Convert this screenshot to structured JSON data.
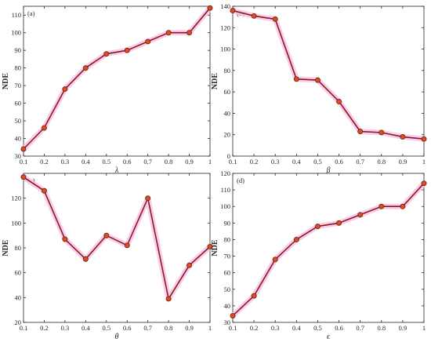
{
  "chart_data": [
    {
      "type": "line",
      "panel": "(a)",
      "x": [
        0.1,
        0.2,
        0.3,
        0.4,
        0.5,
        0.6,
        0.7,
        0.8,
        0.9,
        1
      ],
      "series": [
        {
          "values": [
            34,
            46,
            68,
            80,
            88,
            90,
            95,
            100,
            100,
            114
          ]
        }
      ],
      "xlabel": "λ",
      "ylabel": "NDE",
      "xlim": [
        0.1,
        1
      ],
      "ylim": [
        30,
        115
      ],
      "xticks": [
        "0.1",
        "0.2",
        "0.3",
        "0.4",
        "0.5",
        "0.6",
        "0.7",
        "0.8",
        "0.9",
        "1"
      ],
      "yticks": [
        30,
        40,
        50,
        60,
        70,
        80,
        90,
        100,
        110
      ],
      "grid": false,
      "colors": {
        "line": "#8b1a1a",
        "marker": "#e04a2a",
        "highlight": "#f9c3ea"
      }
    },
    {
      "type": "line",
      "panel": "(b)",
      "x": [
        0.1,
        0.2,
        0.3,
        0.4,
        0.5,
        0.6,
        0.7,
        0.8,
        0.9,
        1
      ],
      "series": [
        {
          "values": [
            136,
            131,
            128,
            72,
            71,
            51,
            23,
            22,
            18,
            16
          ]
        }
      ],
      "xlabel": "β",
      "ylabel": "NDE",
      "xlim": [
        0.1,
        1
      ],
      "ylim": [
        0,
        140
      ],
      "xticks": [
        "0.1",
        "0.2",
        "0.3",
        "0.4",
        "0.5",
        "0.6",
        "0.7",
        "0.8",
        "0.9",
        "1"
      ],
      "yticks": [
        0,
        20,
        40,
        60,
        80,
        100,
        120,
        140
      ],
      "grid": false,
      "colors": {
        "line": "#8b1a1a",
        "marker": "#e04a2a",
        "highlight": "#f9c3ea"
      }
    },
    {
      "type": "line",
      "panel": "(c)",
      "x": [
        0.1,
        0.2,
        0.3,
        0.4,
        0.5,
        0.6,
        0.7,
        0.8,
        0.9,
        1
      ],
      "series": [
        {
          "values": [
            137,
            126,
            87,
            71,
            90,
            82,
            120,
            39,
            66,
            81
          ]
        }
      ],
      "xlabel": "θ",
      "ylabel": "NDE",
      "xlim": [
        0.1,
        1
      ],
      "ylim": [
        20,
        140
      ],
      "xticks": [
        "0.1",
        "0.2",
        "0.3",
        "0.4",
        "0.5",
        "0.6",
        "0.7",
        "0.8",
        "0.9",
        "1"
      ],
      "yticks": [
        20,
        40,
        60,
        80,
        100,
        120
      ],
      "grid": false,
      "colors": {
        "line": "#8b1a1a",
        "marker": "#e04a2a",
        "highlight": "#f9c3ea"
      }
    },
    {
      "type": "line",
      "panel": "(d)",
      "x": [
        0.1,
        0.2,
        0.3,
        0.4,
        0.5,
        0.6,
        0.7,
        0.8,
        0.9,
        1
      ],
      "series": [
        {
          "values": [
            34,
            46,
            68,
            80,
            88,
            90,
            95,
            100,
            100,
            114
          ]
        }
      ],
      "xlabel": "ϵ",
      "ylabel": "NDE",
      "xlim": [
        0.1,
        1
      ],
      "ylim": [
        30,
        120
      ],
      "xticks": [
        "0.1",
        "0.2",
        "0.3",
        "0.4",
        "0.5",
        "0.6",
        "0.7",
        "0.8",
        "0.9",
        "1"
      ],
      "yticks": [
        30,
        40,
        50,
        60,
        70,
        80,
        90,
        100,
        110,
        120
      ],
      "grid": false,
      "colors": {
        "line": "#8b1a1a",
        "marker": "#e04a2a",
        "highlight": "#f9c3ea"
      }
    }
  ]
}
